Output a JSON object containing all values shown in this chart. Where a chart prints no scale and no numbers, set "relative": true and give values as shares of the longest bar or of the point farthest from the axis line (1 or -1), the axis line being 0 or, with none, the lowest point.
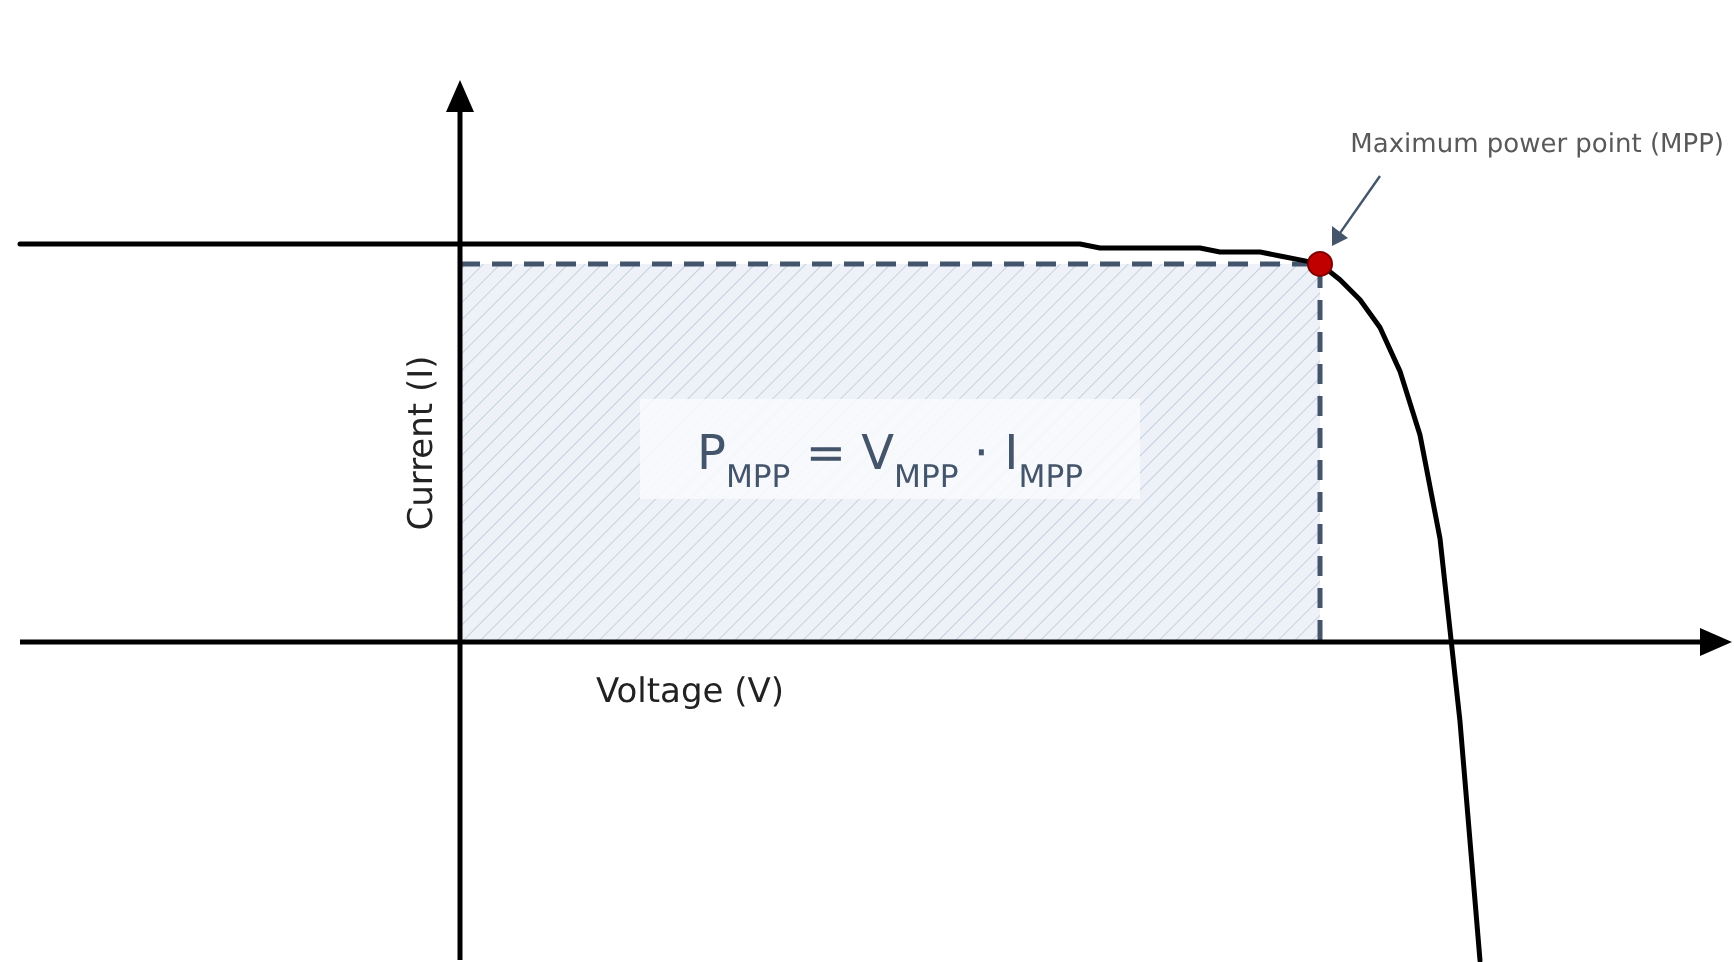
{
  "chart_data": {
    "type": "line",
    "relative": true,
    "xlabel": "Voltage (V)",
    "ylabel": "Current (I)",
    "categories": [
      null,
      null,
      null,
      null,
      null,
      null,
      null,
      null,
      null,
      null,
      null,
      null,
      null,
      null,
      null,
      null,
      null,
      null,
      null,
      null,
      null,
      null,
      null,
      null,
      null,
      null,
      null,
      null,
      null,
      null,
      null,
      null,
      null,
      null,
      null,
      null,
      null,
      null,
      null,
      null,
      null,
      null,
      null,
      null,
      null,
      null,
      null,
      null,
      null,
      null,
      null,
      null,
      null,
      null,
      null,
      null,
      null,
      null,
      null,
      null,
      null,
      null,
      null,
      null,
      null,
      null,
      null,
      null,
      null,
      null,
      null,
      null,
      null,
      null
    ],
    "series": [
      {
        "color": "#000000",
        "values": [
          1,
          1,
          1,
          1,
          1,
          1,
          1,
          1,
          1,
          1,
          1,
          1,
          1,
          1,
          1,
          1,
          1,
          1,
          1,
          1,
          1,
          1,
          1,
          1,
          1,
          1,
          1,
          1,
          1,
          1,
          1,
          1,
          1,
          1,
          1,
          1,
          1,
          1,
          1,
          1,
          1,
          1,
          1,
          1,
          1,
          1,
          1,
          1,
          1,
          1,
          1,
          1,
          1,
          1,
          0.99,
          0.99,
          0.99,
          0.99,
          0.99,
          0.99,
          0.98,
          0.98,
          0.98,
          0.97,
          0.96,
          0.95,
          0.91,
          0.86,
          0.79,
          0.68,
          0.52,
          0.26,
          -0.2,
          -0.8
        ]
      }
    ],
    "marker": "none",
    "line_style": "solid",
    "bands": [
      {
        "axis": "y",
        "from": 0,
        "to": 0.95,
        "color": "#eef2f8"
      }
    ],
    "annotations": [
      "Maximum power point (MPP)",
      "P$_{MPP}$ = V$_{MPP}$ · I$_{MPP}$"
    ]
  }
}
